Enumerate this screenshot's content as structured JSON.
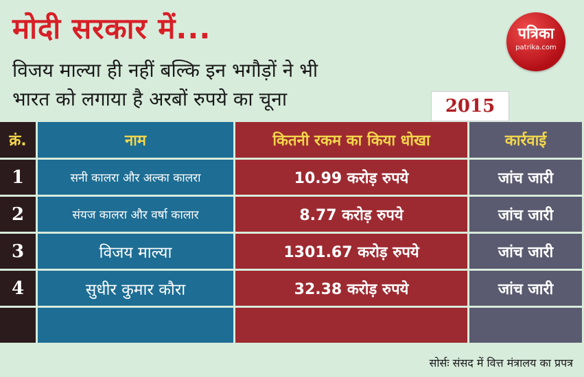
{
  "headline": "मोदी सरकार में...",
  "subtitle_line1": "विजय माल्या ही नहीं बल्कि इन भगौड़ों ने भी",
  "subtitle_line2": "भारत को लगाया है अरबों रुपये का चूना",
  "logo": {
    "name": "पत्रिका",
    "site": "patrika.com"
  },
  "year": "2015",
  "table": {
    "headers": [
      "क्रं.",
      "नाम",
      "कितनी रकम का किया धोखा",
      "कार्रवाई"
    ],
    "rows": [
      [
        "1",
        "सनी कालरा और अल्का कालरा",
        "10.99 करोड़ रुपये",
        "जांच जारी"
      ],
      [
        "2",
        "संयज कालरा और वर्षा कालार",
        "8.77 करोड़ रुपये",
        "जांच जारी"
      ],
      [
        "3",
        "विजय माल्या",
        "1301.67 करोड़ रुपये",
        "जांच जारी"
      ],
      [
        "4",
        "सुधीर कुमार कौरा",
        "32.38 करोड़ रुपये",
        "जांच जारी"
      ]
    ]
  },
  "source": "सोर्सः संसद में वित्त मंत्रालय का प्रपत्र",
  "colors": {
    "headline": "#d71f26",
    "name_col": "#1d6d94",
    "amount_col": "#9e2a31",
    "action_col": "#5a5a70",
    "header_text": "#f2d64b",
    "background": "#d8ecdc"
  }
}
